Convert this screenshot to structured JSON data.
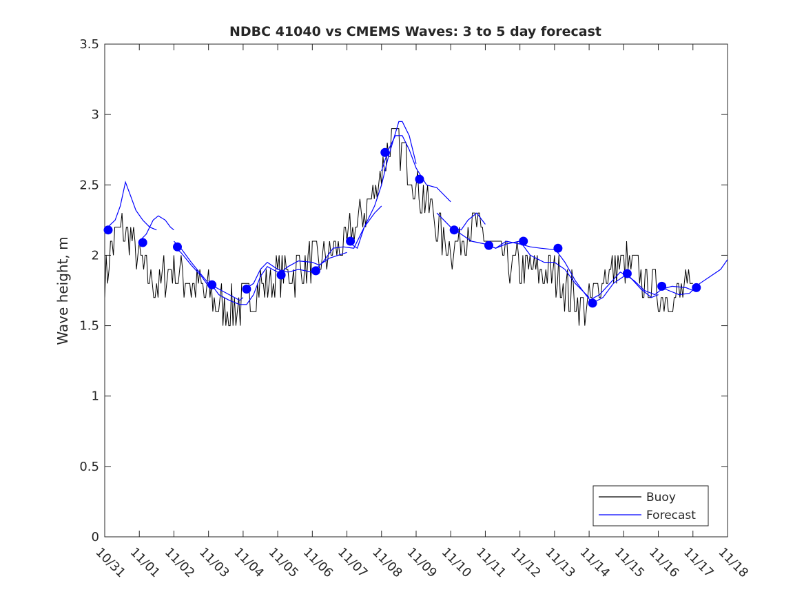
{
  "chart_data": {
    "type": "line",
    "title": "NDBC 41040 vs CMEMS Waves: 3 to 5 day forecast",
    "xlabel": "",
    "ylabel": "Wave height, m",
    "x_tick_labels": [
      "10/31",
      "11/01",
      "11/02",
      "11/03",
      "11/04",
      "11/05",
      "11/06",
      "11/07",
      "11/08",
      "11/09",
      "11/10",
      "11/11",
      "11/12",
      "11/13",
      "11/14",
      "11/15",
      "11/16",
      "11/17",
      "11/18"
    ],
    "x_axis_unit": "days (0 = 10/31 00:00)",
    "xlim": [
      0,
      18
    ],
    "ylim": [
      0,
      3.5
    ],
    "y_ticks": [
      0,
      0.5,
      1,
      1.5,
      2,
      2.5,
      3,
      3.5
    ],
    "y_tick_labels": [
      "0",
      "0.5",
      "1",
      "1.5",
      "2",
      "2.5",
      "3",
      "3.5"
    ],
    "grid": false,
    "legend": {
      "placement": "bottom-right",
      "entries": [
        "Buoy",
        "Forecast"
      ]
    },
    "colors": {
      "buoy": "#000000",
      "forecast": "#0000ff",
      "markers": "#0000ff"
    },
    "series": [
      {
        "name": "Buoy",
        "color": "#000000",
        "anchors": [
          [
            0.0,
            1.8
          ],
          [
            0.25,
            2.1
          ],
          [
            0.5,
            2.2
          ],
          [
            0.75,
            2.15
          ],
          [
            1.0,
            1.95
          ],
          [
            1.25,
            1.85
          ],
          [
            1.5,
            1.8
          ],
          [
            1.75,
            1.85
          ],
          [
            2.0,
            1.9
          ],
          [
            2.25,
            1.85
          ],
          [
            2.5,
            1.8
          ],
          [
            3.0,
            1.72
          ],
          [
            3.25,
            1.68
          ],
          [
            3.5,
            1.62
          ],
          [
            4.0,
            1.65
          ],
          [
            4.25,
            1.7
          ],
          [
            4.5,
            1.78
          ],
          [
            5.0,
            1.85
          ],
          [
            5.5,
            1.88
          ],
          [
            6.0,
            1.95
          ],
          [
            6.5,
            2.0
          ],
          [
            7.0,
            2.1
          ],
          [
            7.25,
            2.2
          ],
          [
            7.5,
            2.3
          ],
          [
            7.75,
            2.4
          ],
          [
            8.0,
            2.6
          ],
          [
            8.25,
            2.8
          ],
          [
            8.5,
            2.8
          ],
          [
            8.75,
            2.65
          ],
          [
            9.0,
            2.5
          ],
          [
            9.25,
            2.4
          ],
          [
            9.5,
            2.3
          ],
          [
            9.75,
            2.1
          ],
          [
            10.0,
            2.05
          ],
          [
            10.25,
            2.1
          ],
          [
            10.5,
            2.2
          ],
          [
            10.75,
            2.2
          ],
          [
            11.0,
            2.1
          ],
          [
            11.25,
            2.05
          ],
          [
            11.5,
            1.98
          ],
          [
            11.75,
            1.93
          ],
          [
            12.0,
            1.92
          ],
          [
            12.25,
            1.9
          ],
          [
            12.5,
            1.88
          ],
          [
            13.0,
            1.85
          ],
          [
            13.25,
            1.8
          ],
          [
            13.5,
            1.72
          ],
          [
            13.75,
            1.65
          ],
          [
            14.0,
            1.62
          ],
          [
            14.25,
            1.75
          ],
          [
            14.5,
            1.88
          ],
          [
            14.75,
            1.92
          ],
          [
            15.0,
            1.95
          ],
          [
            15.25,
            1.9
          ],
          [
            15.5,
            1.85
          ],
          [
            15.75,
            1.78
          ],
          [
            16.0,
            1.73
          ],
          [
            16.25,
            1.7
          ],
          [
            16.5,
            1.7
          ],
          [
            16.75,
            1.75
          ],
          [
            17.0,
            1.72
          ]
        ],
        "noise_amplitude": 0.3,
        "step_resolution": 0.1
      },
      {
        "name": "Forecast",
        "color": "#0000ff",
        "segments": [
          [
            [
              0.0,
              2.18
            ],
            [
              0.3,
              2.25
            ],
            [
              0.45,
              2.35
            ],
            [
              0.6,
              2.52
            ],
            [
              0.75,
              2.42
            ],
            [
              0.9,
              2.32
            ],
            [
              1.1,
              2.25
            ],
            [
              1.3,
              2.2
            ],
            [
              1.5,
              2.18
            ]
          ],
          [
            [
              1.0,
              2.1
            ],
            [
              1.2,
              2.15
            ],
            [
              1.4,
              2.25
            ],
            [
              1.55,
              2.28
            ],
            [
              1.75,
              2.25
            ],
            [
              1.9,
              2.2
            ],
            [
              2.0,
              2.18
            ]
          ],
          [
            [
              1.98,
              2.06
            ],
            [
              2.2,
              2.02
            ],
            [
              2.5,
              1.93
            ],
            [
              2.8,
              1.85
            ],
            [
              3.0,
              1.78
            ]
          ],
          [
            [
              2.0,
              2.1
            ],
            [
              2.2,
              2.05
            ],
            [
              2.5,
              1.95
            ],
            [
              2.8,
              1.86
            ],
            [
              3.0,
              1.8
            ],
            [
              3.3,
              1.76
            ],
            [
              3.6,
              1.72
            ],
            [
              3.9,
              1.68
            ],
            [
              4.0,
              1.7
            ]
          ],
          [
            [
              3.0,
              1.82
            ],
            [
              3.3,
              1.72
            ],
            [
              3.6,
              1.68
            ],
            [
              3.9,
              1.65
            ],
            [
              4.1,
              1.65
            ],
            [
              4.3,
              1.72
            ],
            [
              4.5,
              1.85
            ],
            [
              4.7,
              1.92
            ],
            [
              5.0,
              1.88
            ]
          ],
          [
            [
              4.0,
              1.75
            ],
            [
              4.3,
              1.8
            ],
            [
              4.5,
              1.9
            ],
            [
              4.7,
              1.95
            ],
            [
              5.0,
              1.9
            ],
            [
              5.3,
              1.88
            ],
            [
              5.6,
              1.9
            ],
            [
              6.0,
              1.88
            ]
          ],
          [
            [
              5.0,
              1.86
            ],
            [
              5.3,
              1.92
            ],
            [
              5.6,
              1.96
            ],
            [
              6.0,
              1.95
            ],
            [
              6.2,
              1.93
            ],
            [
              6.5,
              1.98
            ],
            [
              7.0,
              2.02
            ]
          ],
          [
            [
              6.0,
              1.88
            ],
            [
              6.3,
              1.95
            ],
            [
              6.6,
              2.05
            ],
            [
              6.9,
              2.06
            ],
            [
              7.2,
              2.05
            ],
            [
              7.5,
              2.2
            ],
            [
              7.8,
              2.3
            ],
            [
              8.0,
              2.35
            ]
          ],
          [
            [
              7.0,
              2.1
            ],
            [
              7.3,
              2.05
            ],
            [
              7.5,
              2.2
            ],
            [
              7.8,
              2.35
            ],
            [
              8.0,
              2.5
            ],
            [
              8.2,
              2.7
            ],
            [
              8.5,
              2.95
            ],
            [
              8.6,
              2.95
            ],
            [
              8.8,
              2.85
            ],
            [
              9.0,
              2.65
            ]
          ],
          [
            [
              8.0,
              2.6
            ],
            [
              8.2,
              2.75
            ],
            [
              8.4,
              2.85
            ],
            [
              8.6,
              2.85
            ],
            [
              8.8,
              2.75
            ],
            [
              9.0,
              2.62
            ],
            [
              9.3,
              2.5
            ],
            [
              9.6,
              2.48
            ],
            [
              10.0,
              2.38
            ]
          ],
          [
            [
              9.6,
              2.3
            ],
            [
              10.0,
              2.2
            ],
            [
              10.3,
              2.18
            ],
            [
              10.5,
              2.25
            ],
            [
              10.75,
              2.3
            ],
            [
              11.0,
              2.22
            ]
          ],
          [
            [
              10.0,
              2.2
            ],
            [
              10.3,
              2.15
            ],
            [
              10.6,
              2.1
            ],
            [
              11.0,
              2.08
            ],
            [
              11.3,
              2.05
            ],
            [
              11.6,
              2.08
            ],
            [
              12.0,
              2.1
            ]
          ],
          [
            [
              11.0,
              2.08
            ],
            [
              11.3,
              2.05
            ],
            [
              11.6,
              2.1
            ],
            [
              12.0,
              2.08
            ],
            [
              12.3,
              2.06
            ],
            [
              12.6,
              2.05
            ],
            [
              13.0,
              2.04
            ]
          ],
          [
            [
              12.0,
              2.1
            ],
            [
              12.3,
              2.0
            ],
            [
              12.7,
              1.95
            ],
            [
              13.0,
              1.95
            ],
            [
              13.3,
              1.9
            ],
            [
              13.6,
              1.8
            ],
            [
              14.0,
              1.7
            ]
          ],
          [
            [
              13.0,
              2.05
            ],
            [
              13.3,
              1.95
            ],
            [
              13.6,
              1.82
            ],
            [
              13.9,
              1.72
            ],
            [
              14.1,
              1.66
            ],
            [
              14.4,
              1.7
            ],
            [
              14.7,
              1.8
            ],
            [
              15.0,
              1.85
            ]
          ],
          [
            [
              14.0,
              1.68
            ],
            [
              14.3,
              1.72
            ],
            [
              14.6,
              1.8
            ],
            [
              14.9,
              1.88
            ],
            [
              15.2,
              1.84
            ],
            [
              15.5,
              1.76
            ],
            [
              15.8,
              1.7
            ],
            [
              16.0,
              1.72
            ]
          ],
          [
            [
              15.0,
              1.87
            ],
            [
              15.3,
              1.82
            ],
            [
              15.6,
              1.75
            ],
            [
              15.9,
              1.72
            ],
            [
              16.1,
              1.76
            ],
            [
              16.4,
              1.78
            ],
            [
              16.8,
              1.77
            ],
            [
              17.0,
              1.75
            ]
          ],
          [
            [
              16.0,
              1.78
            ],
            [
              16.3,
              1.75
            ],
            [
              16.6,
              1.72
            ],
            [
              16.9,
              1.73
            ],
            [
              17.2,
              1.8
            ],
            [
              17.5,
              1.85
            ],
            [
              17.8,
              1.9
            ],
            [
              18.0,
              1.97
            ]
          ]
        ]
      },
      {
        "name": "",
        "type": "scatter",
        "color": "#0000ff",
        "points": [
          [
            0.1,
            2.18
          ],
          [
            1.1,
            2.09
          ],
          [
            2.1,
            2.06
          ],
          [
            3.1,
            1.79
          ],
          [
            4.1,
            1.76
          ],
          [
            5.1,
            1.86
          ],
          [
            6.1,
            1.89
          ],
          [
            7.1,
            2.1
          ],
          [
            8.1,
            2.73
          ],
          [
            9.1,
            2.54
          ],
          [
            10.1,
            2.18
          ],
          [
            11.1,
            2.07
          ],
          [
            12.1,
            2.1
          ],
          [
            13.1,
            2.05
          ],
          [
            14.1,
            1.66
          ],
          [
            15.1,
            1.87
          ],
          [
            16.1,
            1.78
          ],
          [
            17.1,
            1.77
          ]
        ]
      }
    ]
  }
}
